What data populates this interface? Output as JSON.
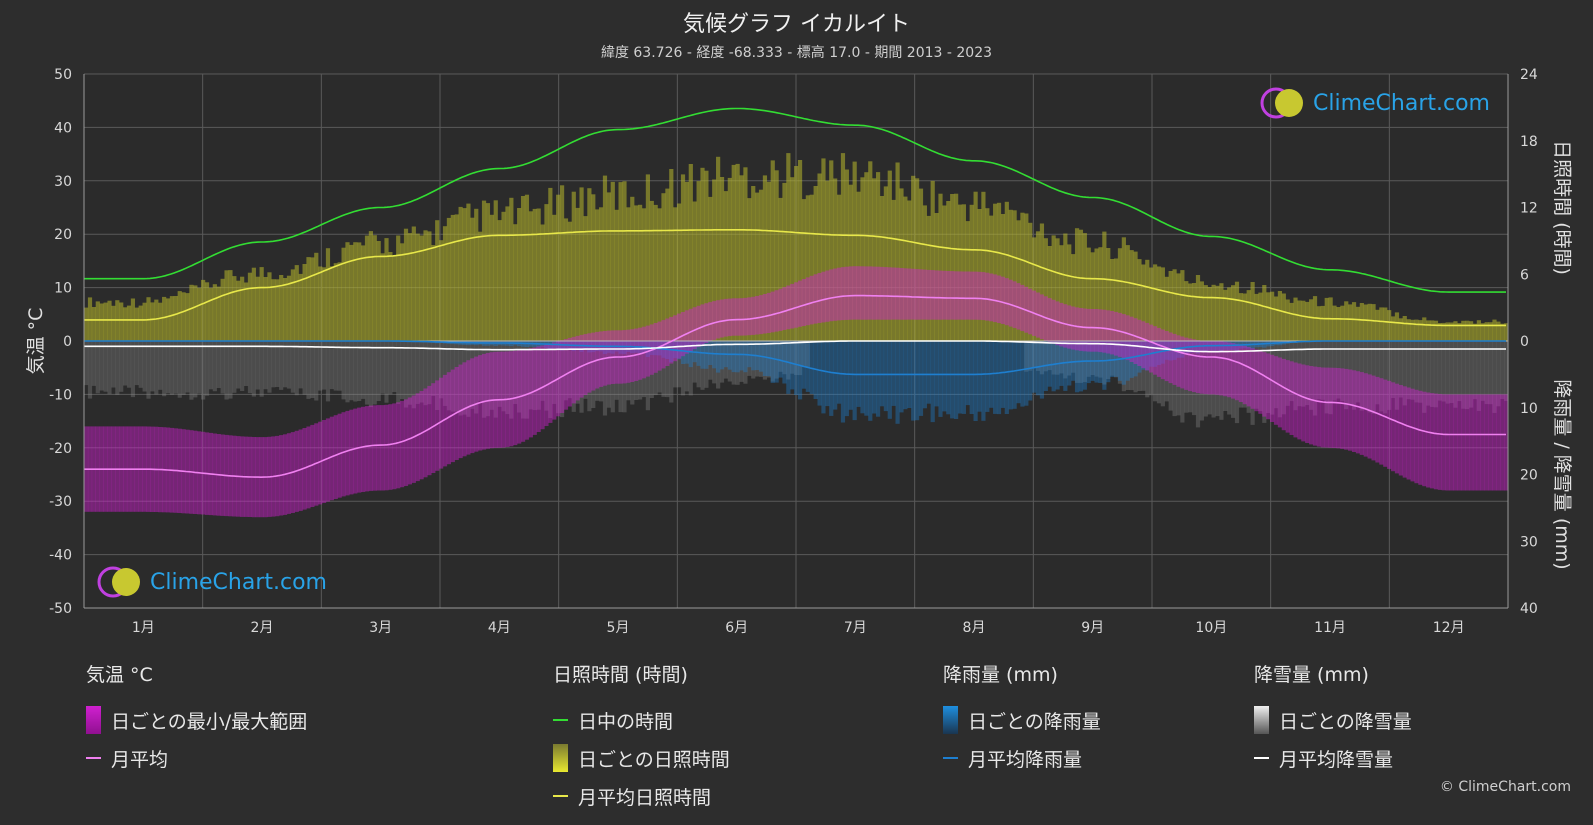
{
  "header": {
    "title": "気候グラフ イカルイト",
    "subtitle": "緯度 63.726 - 経度 -68.333 - 標高 17.0 - 期間 2013 - 2023"
  },
  "logo": {
    "text": "ClimeChart.com"
  },
  "copyright": "© ClimeChart.com",
  "colors": {
    "background": "#2d2d2d",
    "temp_range": "#d020d0",
    "temp_avg": "#f080f0",
    "daylight": "#33dd33",
    "sunshine_bar": "#b8b82c",
    "sunshine_avg": "#e8e84a",
    "rain": "#1e7fd0",
    "snow": "#d8d8d8"
  },
  "legend": {
    "temperature": {
      "head": "気温 °C",
      "range": "日ごとの最小/最大範囲",
      "avg": "月平均"
    },
    "sunshine": {
      "head": "日照時間 (時間)",
      "daylight": "日中の時間",
      "daily": "日ごとの日照時間",
      "avg": "月平均日照時間"
    },
    "rain": {
      "head": "降雨量 (mm)",
      "daily": "日ごとの降雨量",
      "avg": "月平均降雨量"
    },
    "snow": {
      "head": "降雪量 (mm)",
      "daily": "日ごとの降雪量",
      "avg": "月平均降雪量"
    }
  },
  "chart_data": {
    "type": "line",
    "categories": [
      "1月",
      "2月",
      "3月",
      "4月",
      "5月",
      "6月",
      "7月",
      "8月",
      "9月",
      "10月",
      "11月",
      "12月"
    ],
    "y_left": {
      "label": "気温 °C",
      "ticks": [
        50,
        40,
        30,
        20,
        10,
        0,
        -10,
        -20,
        -30,
        -40,
        -50
      ],
      "range": [
        -50,
        50
      ]
    },
    "y_right_top": {
      "label": "日照時間 (時間)",
      "ticks": [
        24,
        18,
        12,
        6,
        0
      ],
      "range": [
        0,
        24
      ]
    },
    "y_right_bottom": {
      "label": "降雨量 / 降雪量 (mm)",
      "ticks": [
        0,
        10,
        20,
        30,
        40
      ],
      "range": [
        0,
        40
      ]
    },
    "grid": true,
    "series": [
      {
        "name": "日中の時間",
        "axis": "sunshine_hours",
        "values": [
          5.6,
          8.9,
          12.0,
          15.5,
          19.0,
          20.9,
          19.4,
          16.2,
          12.9,
          9.4,
          6.4,
          4.4
        ]
      },
      {
        "name": "月平均日照時間",
        "axis": "sunshine_hours",
        "values": [
          1.9,
          4.8,
          7.6,
          9.5,
          9.9,
          10.0,
          9.5,
          8.2,
          5.6,
          3.9,
          2.0,
          1.4
        ]
      },
      {
        "name": "月平均",
        "axis": "temperature_c",
        "values": [
          -24,
          -25.5,
          -19.5,
          -11,
          -3,
          4,
          8.5,
          8,
          2.5,
          -3,
          -11.5,
          -17.5
        ]
      },
      {
        "name": "月平均降雨量",
        "axis": "precip_mm",
        "values": [
          0,
          0,
          0,
          0.3,
          0.8,
          2.0,
          5.0,
          5.0,
          3.0,
          0.7,
          0,
          0
        ]
      },
      {
        "name": "月平均降雪量",
        "axis": "precip_mm",
        "values": [
          0.8,
          0.8,
          1.0,
          1.3,
          1.2,
          0.5,
          0,
          0,
          0.4,
          1.6,
          1.2,
          1.2
        ]
      }
    ],
    "daily_temp_range": {
      "min": [
        -32,
        -33,
        -28,
        -20,
        -8,
        1,
        4,
        4,
        -2,
        -10,
        -20,
        -28
      ],
      "max": [
        -16,
        -18,
        -12,
        -2,
        2,
        8,
        14,
        13,
        6,
        0,
        -5,
        -10
      ]
    },
    "daily_sunshine": {
      "max_hours": [
        4,
        7,
        10,
        13,
        15,
        17,
        17,
        14,
        10,
        6,
        4,
        2
      ]
    }
  }
}
